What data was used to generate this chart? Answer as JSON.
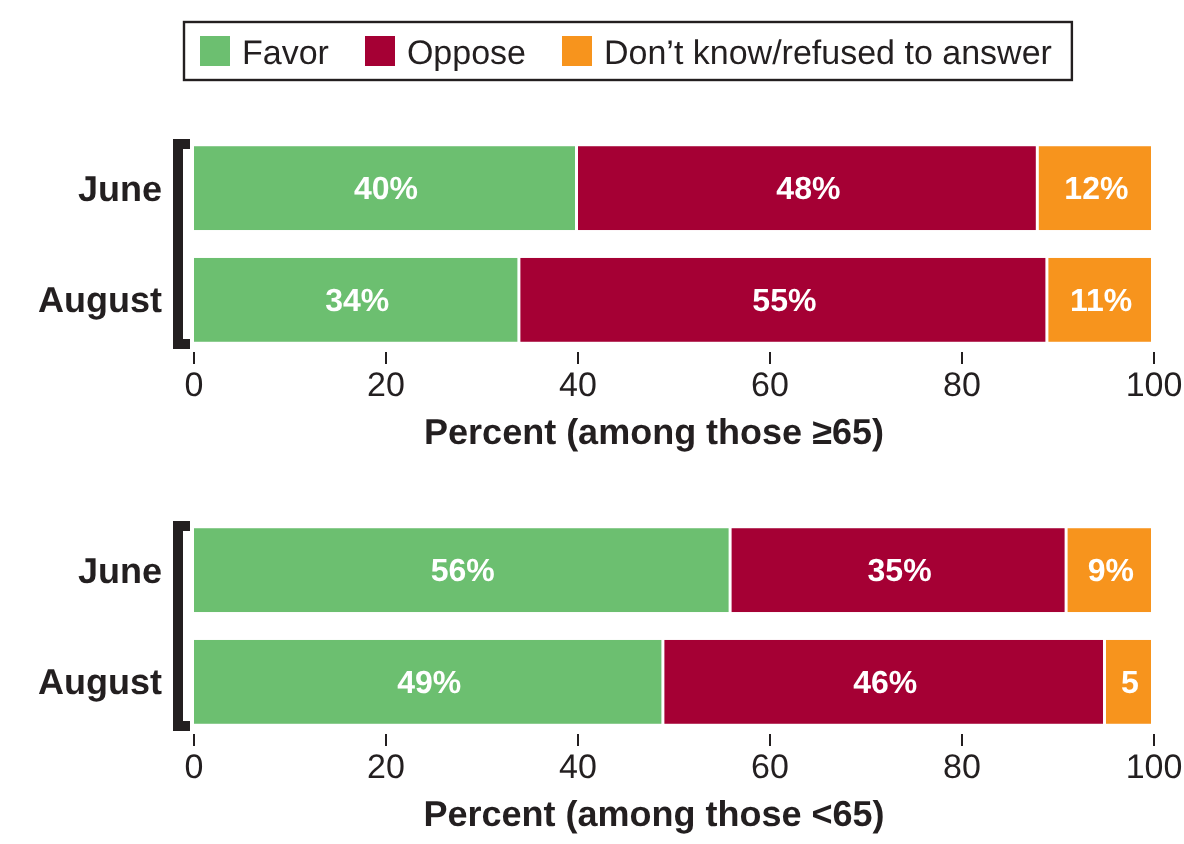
{
  "chart_data": [
    {
      "type": "bar",
      "orientation": "horizontal",
      "stacked": true,
      "categories": [
        "June",
        "August"
      ],
      "xlabel": "Percent (among those ≥65)",
      "xlim": [
        0,
        100
      ],
      "xticks": [
        0,
        20,
        40,
        60,
        80,
        100
      ],
      "grid": false,
      "legend": "top",
      "series": [
        {
          "name": "Favor",
          "color": "#6cbf70",
          "values": [
            40,
            34
          ],
          "value_labels": [
            "40%",
            "34%"
          ]
        },
        {
          "name": "Oppose",
          "color": "#a50034",
          "values": [
            48,
            55
          ],
          "value_labels": [
            "48%",
            "55%"
          ]
        },
        {
          "name": "Don’t know/refused to answer",
          "color": "#f7941d",
          "values": [
            12,
            11
          ],
          "value_labels": [
            "12%",
            "11%"
          ]
        }
      ]
    },
    {
      "type": "bar",
      "orientation": "horizontal",
      "stacked": true,
      "categories": [
        "June",
        "August"
      ],
      "xlabel": "Percent (among those <65)",
      "xlim": [
        0,
        100
      ],
      "xticks": [
        0,
        20,
        40,
        60,
        80,
        100
      ],
      "grid": false,
      "series": [
        {
          "color": "#6cbf70",
          "values": [
            56,
            49
          ],
          "value_labels": [
            "56%",
            "49%"
          ]
        },
        {
          "color": "#a50034",
          "values": [
            35,
            46
          ],
          "value_labels": [
            "35%",
            "46%"
          ]
        },
        {
          "color": "#f7941d",
          "values": [
            9,
            5
          ],
          "value_labels": [
            "9%",
            "5"
          ]
        }
      ]
    }
  ]
}
